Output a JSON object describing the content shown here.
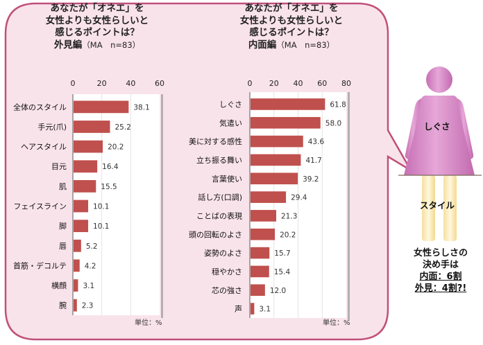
{
  "chart_data": [
    {
      "type": "bar",
      "orientation": "horizontal",
      "title_lines": [
        "あなたが「オネエ」を",
        "女性よりも女性らしいと",
        "感じるポイントは？"
      ],
      "subtitle": "外見編",
      "sample_note": "（MA　n=83）",
      "unit_label": "単位：%",
      "categories": [
        "全体のスタイル",
        "手元(爪)",
        "ヘアスタイル",
        "目元",
        "肌",
        "フェイスライン",
        "脚",
        "唇",
        "首筋・デコルテ",
        "横顔",
        "腕"
      ],
      "values": [
        38.1,
        25.2,
        20.2,
        16.4,
        15.5,
        10.1,
        10.1,
        5.2,
        4.2,
        3.1,
        2.3
      ],
      "value_labels": [
        "38.1",
        "25.2",
        "20.2",
        "16.4",
        "15.5",
        "10.1",
        "10.1",
        "5.2",
        "4.2",
        "3.1",
        "2.3"
      ],
      "xlim": [
        0,
        60
      ],
      "ticks": [
        "0",
        "20",
        "40",
        "60"
      ],
      "bar_color": "#c0504d"
    },
    {
      "type": "bar",
      "orientation": "horizontal",
      "title_lines": [
        "あなたが「オネエ」を",
        "女性よりも女性らしいと",
        "感じるポイントは？"
      ],
      "subtitle": "内面編",
      "sample_note": "（MA　n=83）",
      "unit_label": "単位：%",
      "categories": [
        "しぐさ",
        "気遣い",
        "美に対する感性",
        "立ち振る舞い",
        "言葉使い",
        "話し方(口調)",
        "ことばの表現",
        "頭の回転のよさ",
        "姿勢のよさ",
        "穏やかさ",
        "芯の強さ",
        "声"
      ],
      "values": [
        61.8,
        58.0,
        43.6,
        41.7,
        39.2,
        29.4,
        21.3,
        20.2,
        15.7,
        15.4,
        12.0,
        3.1
      ],
      "value_labels": [
        "61.8",
        "58.0",
        "43.6",
        "41.7",
        "39.2",
        "29.4",
        "21.3",
        "20.2",
        "15.7",
        "15.4",
        "12.0",
        "3.1"
      ],
      "xlim": [
        0,
        80
      ],
      "ticks": [
        "0",
        "20",
        "40",
        "60",
        "80"
      ],
      "bar_color": "#c0504d"
    }
  ],
  "figure": {
    "upper_label": "しぐさ",
    "lower_label": "スタイル",
    "upper_share": 0.6,
    "lower_share": 0.4
  },
  "conclusion": {
    "line1": "女性らしさの",
    "line2": "決め手は",
    "line3": "内面：6割",
    "line4": "外見：4割?!"
  },
  "colors": {
    "bubble_fill": "#f9e3ea",
    "bubble_stroke": "#c0507a",
    "bar": "#c0504d",
    "figure_upper": "#d489c4",
    "figure_lower": "#fbeec0"
  }
}
